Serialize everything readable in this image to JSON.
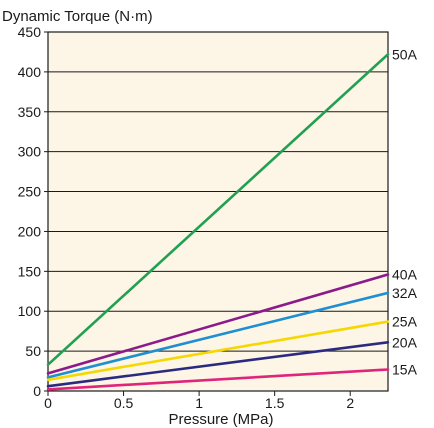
{
  "chart_data": {
    "type": "line",
    "title": "",
    "xlabel": "Pressure (MPa)",
    "ylabel": "Dynamic Torque (N·m)",
    "xlim": [
      0,
      2.25
    ],
    "ylim": [
      0,
      450
    ],
    "x_ticks": [
      {
        "value": 0,
        "label": "0"
      },
      {
        "value": 0.5,
        "label": "0.5"
      },
      {
        "value": 1,
        "label": "1"
      },
      {
        "value": 1.5,
        "label": "1.5"
      },
      {
        "value": 2,
        "label": "2"
      }
    ],
    "y_ticks": [
      {
        "value": 0,
        "label": "0"
      },
      {
        "value": 50,
        "label": "50"
      },
      {
        "value": 100,
        "label": "100"
      },
      {
        "value": 150,
        "label": "150"
      },
      {
        "value": 200,
        "label": "200"
      },
      {
        "value": 250,
        "label": "250"
      },
      {
        "value": 300,
        "label": "300"
      },
      {
        "value": 350,
        "label": "350"
      },
      {
        "value": 400,
        "label": "400"
      },
      {
        "value": 450,
        "label": "450"
      }
    ],
    "grid": "horizontal",
    "plot_background": "#fdf5e6",
    "series": [
      {
        "name": "50A",
        "color": "#20a050",
        "x": [
          0,
          2.25
        ],
        "y": [
          33,
          422
        ]
      },
      {
        "name": "40A",
        "color": "#8b1a8b",
        "x": [
          0,
          2.25
        ],
        "y": [
          22,
          146
        ]
      },
      {
        "name": "32A",
        "color": "#1e8fd0",
        "x": [
          0,
          2.25
        ],
        "y": [
          17,
          123
        ]
      },
      {
        "name": "25A",
        "color": "#f5d800",
        "x": [
          0,
          2.25
        ],
        "y": [
          14,
          87
        ]
      },
      {
        "name": "20A",
        "color": "#2a2a80",
        "x": [
          0,
          2.25
        ],
        "y": [
          6,
          61
        ]
      },
      {
        "name": "15A",
        "color": "#e0247a",
        "x": [
          0,
          2.25
        ],
        "y": [
          2,
          27
        ]
      }
    ]
  }
}
